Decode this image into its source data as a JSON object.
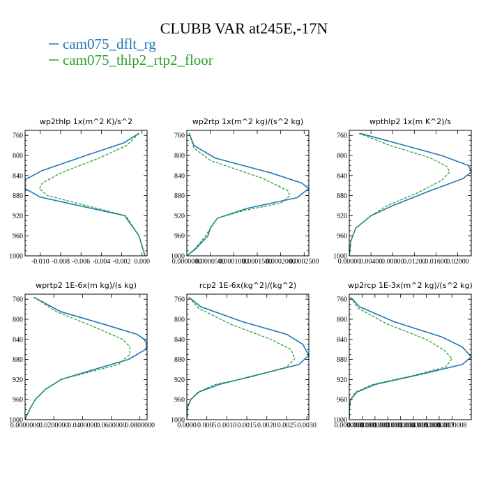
{
  "figure": {
    "title": "CLUBB VAR at245E,-17N",
    "legend": [
      {
        "name": "cam075_dflt_rg",
        "color": "#1f77b4",
        "dash": "solid"
      },
      {
        "name": "cam075_thlp2_rtp2_floor",
        "color": "#2ca02c",
        "dash": "dashed"
      }
    ]
  },
  "chart_data": [
    {
      "type": "line",
      "title": "wp2thlp  1x(m^2 K)/s^2",
      "xlim": [
        -0.0115,
        0.0005
      ],
      "ylim": [
        1000,
        750
      ],
      "xticks": [
        -0.01,
        -0.008,
        -0.006,
        -0.004,
        -0.002,
        0.0
      ],
      "xtick_labels": [
        "-0.010",
        "-0.008",
        "-0.006",
        "-0.004",
        "-0.002",
        "0.000"
      ],
      "yticks": [
        760,
        800,
        840,
        880,
        920,
        960,
        1000
      ],
      "ytick_labels": [
        "760",
        "800",
        "840",
        "880",
        "920",
        "960",
        "1000"
      ],
      "series": [
        {
          "name": "cam075_dflt_rg",
          "y": [
            756,
            775,
            800,
            830,
            848,
            866,
            883,
            920,
            960,
            1000
          ],
          "x": [
            -0.0003,
            -0.0018,
            -0.0055,
            -0.0098,
            -0.0115,
            -0.0115,
            -0.01,
            -0.0017,
            -0.0003,
            0.0003
          ]
        },
        {
          "name": "cam075_thlp2_rtp2_floor",
          "y": [
            756,
            780,
            805,
            835,
            855,
            866,
            880,
            920,
            960,
            1000
          ],
          "x": [
            -0.0003,
            -0.0015,
            -0.0042,
            -0.008,
            -0.0098,
            -0.0101,
            -0.0093,
            -0.0016,
            -0.0003,
            0.0003
          ]
        }
      ]
    },
    {
      "type": "line",
      "title": "wp2rtp  1x(m^2 kg)/(s^2 kg)",
      "xlim": [
        0.0,
        0.00026
      ],
      "ylim": [
        1000,
        750
      ],
      "xticks": [
        0.0,
        5e-05,
        0.0001,
        0.00015,
        0.0002,
        0.00025
      ],
      "xtick_labels": [
        "0.0000000",
        "0.0000500",
        "0.0001000",
        "0.0001500",
        "0.0002000",
        "0.0002500"
      ],
      "yticks": [
        760,
        800,
        840,
        880,
        920,
        960,
        1000
      ],
      "ytick_labels": [
        "760",
        "800",
        "840",
        "880",
        "920",
        "960",
        "1000"
      ],
      "series": [
        {
          "name": "cam075_dflt_rg",
          "y": [
            756,
            780,
            805,
            835,
            855,
            866,
            884,
            905,
            925,
            945,
            960,
            985,
            1000
          ],
          "x": [
            5e-06,
            1.5e-05,
            6e-05,
            0.00018,
            0.000245,
            0.00026,
            0.000235,
            0.00013,
            6.5e-05,
            5e-05,
            4.5e-05,
            2e-05,
            0.0
          ],
          "dash": "solid"
        },
        {
          "name": "cam075_thlp2_rtp2_floor",
          "y": [
            756,
            785,
            810,
            845,
            870,
            880,
            895,
            910,
            925,
            945,
            960,
            985,
            1000
          ],
          "x": [
            5e-06,
            1.5e-05,
            5e-05,
            0.00016,
            0.000215,
            0.00022,
            0.0002,
            0.00012,
            6.5e-05,
            5e-05,
            4e-05,
            1.8e-05,
            0.0
          ],
          "dash": "dashed"
        }
      ]
    },
    {
      "type": "line",
      "title": "wpthlp2  1x(m K^2)/s",
      "xlim": [
        0.0,
        0.0225
      ],
      "ylim": [
        1000,
        750
      ],
      "xticks": [
        0.0,
        0.004,
        0.008,
        0.012,
        0.016,
        0.02
      ],
      "xtick_labels": [
        "0.00000",
        "0.00400",
        "0.00800",
        "0.01200",
        "0.01600",
        "0.02000"
      ],
      "yticks": [
        760,
        800,
        840,
        880,
        920,
        960,
        1000
      ],
      "ytick_labels": [
        "760",
        "800",
        "840",
        "880",
        "920",
        "960",
        "1000"
      ],
      "series": [
        {
          "name": "cam075_dflt_rg",
          "y": [
            756,
            775,
            800,
            820,
            833,
            846,
            870,
            900,
            920,
            945,
            970,
            1000
          ],
          "x": [
            0.002,
            0.0085,
            0.017,
            0.022,
            0.0225,
            0.021,
            0.015,
            0.008,
            0.004,
            0.0012,
            0.0003,
            0.0
          ],
          "dash": "solid"
        },
        {
          "name": "cam075_thlp2_rtp2_floor",
          "y": [
            756,
            780,
            805,
            822,
            833,
            850,
            875,
            900,
            920,
            945,
            970,
            1000
          ],
          "x": [
            0.0018,
            0.0075,
            0.015,
            0.018,
            0.0185,
            0.017,
            0.0125,
            0.007,
            0.004,
            0.0012,
            0.0003,
            0.0
          ],
          "dash": "dashed"
        }
      ]
    },
    {
      "type": "line",
      "title": "wprtp2  1E-6x(m kg)/(s kg)",
      "xlim": [
        0.0,
        0.085
      ],
      "ylim": [
        1000,
        750
      ],
      "xticks": [
        0.0,
        0.02,
        0.04,
        0.06,
        0.08
      ],
      "xtick_labels": [
        "0.0000000",
        "0.0200000",
        "0.0400000",
        "0.0600000",
        "0.0800000"
      ],
      "yticks": [
        760,
        800,
        840,
        880,
        920,
        960,
        1000
      ],
      "ytick_labels": [
        "760",
        "800",
        "840",
        "880",
        "920",
        "960",
        "1000"
      ],
      "series": [
        {
          "name": "cam075_dflt_rg",
          "y": [
            756,
            785,
            810,
            830,
            840,
            850,
            860,
            880,
            900,
            920,
            940,
            960,
            980,
            1000
          ],
          "x": [
            0.006,
            0.025,
            0.055,
            0.078,
            0.083,
            0.085,
            0.084,
            0.072,
            0.048,
            0.025,
            0.014,
            0.007,
            0.003,
            0.0
          ],
          "dash": "solid"
        },
        {
          "name": "cam075_thlp2_rtp2_floor",
          "y": [
            756,
            785,
            815,
            840,
            855,
            870,
            890,
            905,
            920,
            940,
            960,
            980,
            1000
          ],
          "x": [
            0.006,
            0.022,
            0.048,
            0.068,
            0.073,
            0.073,
            0.065,
            0.045,
            0.025,
            0.014,
            0.007,
            0.003,
            0.0
          ],
          "dash": "dashed"
        }
      ]
    },
    {
      "type": "line",
      "title": "rcp2  1E-6x(kg^2)/(kg^2)",
      "xlim": [
        0.0,
        0.00305
      ],
      "ylim": [
        1000,
        750
      ],
      "xticks": [
        0.0,
        0.0005,
        0.001,
        0.0015,
        0.002,
        0.0025,
        0.003
      ],
      "xtick_labels": [
        "0.0000",
        "0.0005",
        "0.0010",
        "0.0015",
        "0.0020",
        "0.0025",
        "0.0030"
      ],
      "yticks": [
        760,
        800,
        840,
        880,
        920,
        960,
        1000
      ],
      "ytick_labels": [
        "760",
        "800",
        "840",
        "880",
        "920",
        "960",
        "1000"
      ],
      "series": [
        {
          "name": "cam075_dflt_rg",
          "y": [
            756,
            775,
            805,
            830,
            850,
            872,
            890,
            910,
            930,
            945,
            960,
            975,
            1000
          ],
          "x": [
            5e-05,
            0.00035,
            0.0014,
            0.0025,
            0.0029,
            0.00305,
            0.0028,
            0.0018,
            0.0008,
            0.0003,
            0.0001,
            2e-05,
            0.0
          ],
          "dash": "solid"
        },
        {
          "name": "cam075_thlp2_rtp2_floor",
          "y": [
            756,
            778,
            810,
            840,
            860,
            878,
            895,
            915,
            930,
            945,
            960,
            975,
            1000
          ],
          "x": [
            5e-05,
            0.0003,
            0.0011,
            0.0021,
            0.0026,
            0.0027,
            0.0025,
            0.0016,
            0.0007,
            0.00028,
            9e-05,
            2e-05,
            0.0
          ],
          "dash": "dashed"
        }
      ]
    },
    {
      "type": "line",
      "title": "wp2rcp  1E-3x(m^2 kg)/(s^2 kg)",
      "xlim": [
        0.0,
        9.5e-07
      ],
      "ylim": [
        1000,
        750
      ],
      "xticks": [
        0.0,
        1e-07,
        2e-07,
        3e-07,
        4e-07,
        5e-07,
        6e-07,
        7e-07,
        8e-07
      ],
      "xtick_labels": [
        "0.0000000",
        "0.0000001",
        "0.0000002",
        "0.0000003",
        "0.0000004",
        "0.0000005",
        "0.0000006",
        "0.0000007",
        "0.0000008"
      ],
      "yticks": [
        760,
        800,
        840,
        880,
        920,
        960,
        1000
      ],
      "ytick_labels": [
        "760",
        "800",
        "840",
        "880",
        "920",
        "960",
        "1000"
      ],
      "series": [
        {
          "name": "cam075_dflt_rg",
          "y": [
            756,
            775,
            805,
            835,
            855,
            875,
            890,
            910,
            930,
            945,
            960,
            980,
            1000
          ],
          "x": [
            1e-08,
            8e-08,
            3.5e-07,
            7.2e-07,
            8.8e-07,
            9.5e-07,
            8.8e-07,
            5.5e-07,
            2e-07,
            6e-08,
            1e-08,
            0.0,
            0.0
          ],
          "dash": "solid"
        },
        {
          "name": "cam075_thlp2_rtp2_floor",
          "y": [
            756,
            778,
            810,
            840,
            862,
            878,
            895,
            912,
            930,
            945,
            960,
            980,
            1000
          ],
          "x": [
            1e-08,
            7e-08,
            3e-07,
            6e-07,
            7.4e-07,
            8e-07,
            7.5e-07,
            5e-07,
            1.8e-07,
            5e-08,
            1e-08,
            0.0,
            0.0
          ],
          "dash": "dashed"
        }
      ]
    }
  ]
}
